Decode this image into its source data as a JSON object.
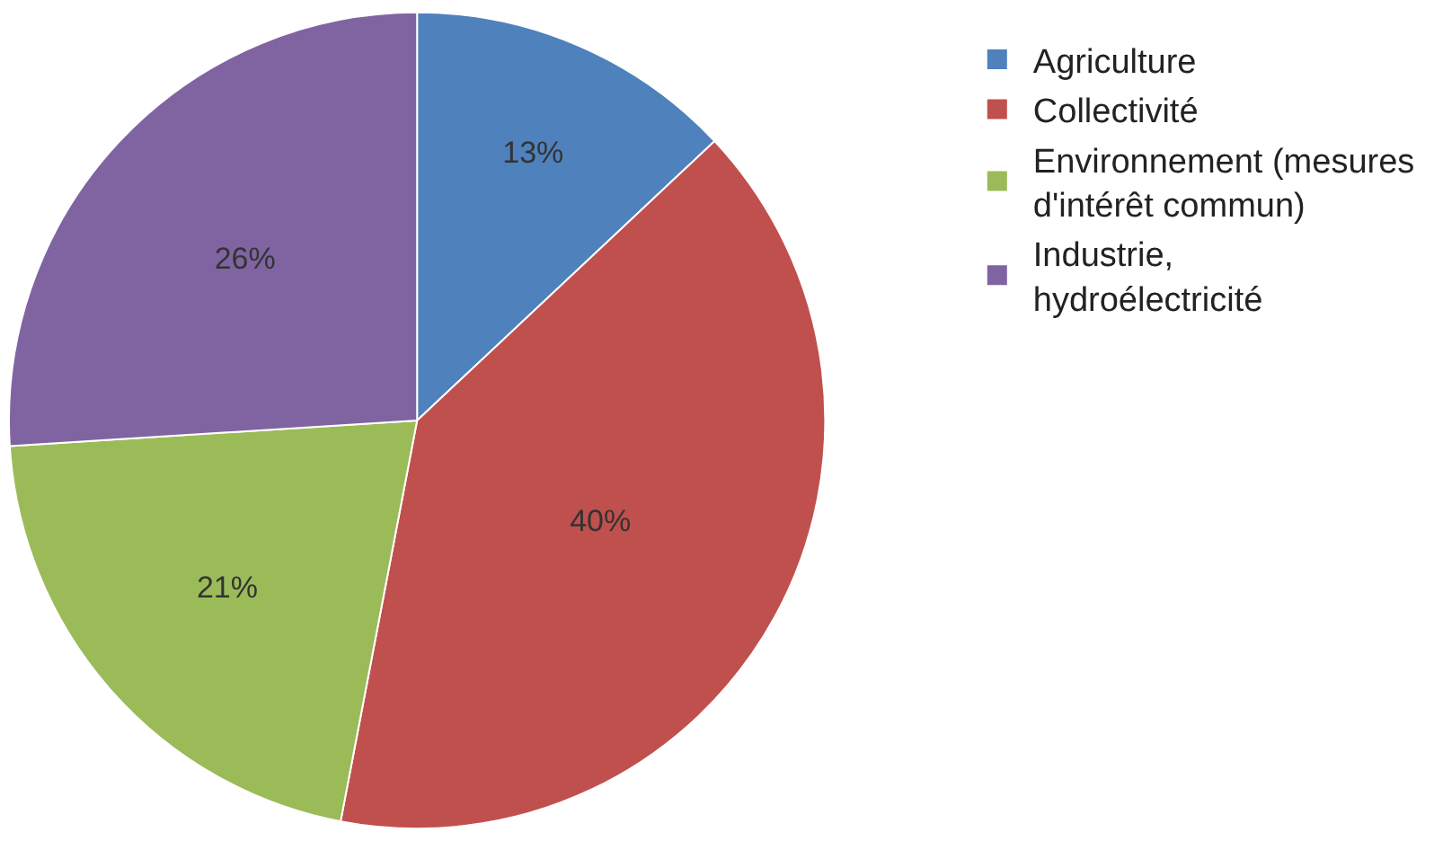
{
  "chart_data": {
    "type": "pie",
    "categories": [
      "Agriculture",
      "Collectivité",
      "Environnement (mesures d'intérêt commun)",
      "Industrie, hydroélectricité"
    ],
    "values": [
      13,
      40,
      21,
      26
    ],
    "value_labels": [
      "13%",
      "40%",
      "21%",
      "26%"
    ],
    "colors": [
      "#4f81bd",
      "#c0504d",
      "#9bbb59",
      "#8064a2"
    ],
    "legend": "right"
  }
}
